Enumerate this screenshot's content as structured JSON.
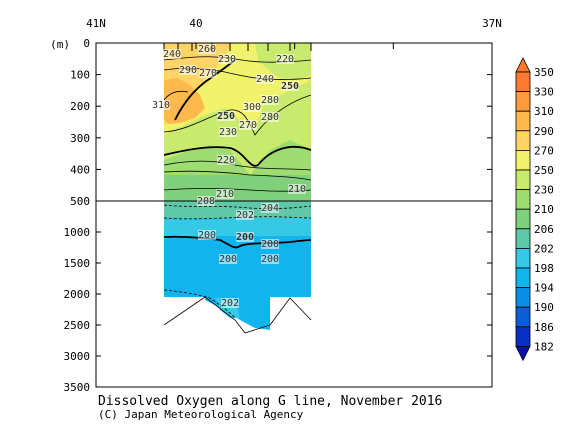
{
  "chart_data": {
    "type": "heatmap",
    "title": "Dissolved Oxygen along G line, November 2016",
    "credit": "(C) Japan Meteorological Agency",
    "ylabel": "(m)",
    "x_top_labels": [
      "41N",
      "40",
      "37N"
    ],
    "y_upper_ticks": [
      0,
      100,
      200,
      300,
      400,
      500
    ],
    "y_lower_ticks": [
      1000,
      1500,
      2000,
      2500,
      3000,
      3500
    ],
    "y_break_depth": 500,
    "ylim": [
      0,
      3500
    ],
    "colorbar": {
      "levels": [
        350,
        330,
        310,
        290,
        270,
        250,
        230,
        210,
        206,
        202,
        198,
        194,
        190,
        186,
        182
      ],
      "colors": [
        "#ff7a2e",
        "#ff9a3c",
        "#ffb84d",
        "#ffd466",
        "#f2f26a",
        "#c8eb6e",
        "#9edb70",
        "#7ed07a",
        "#5ec8a8",
        "#35c9e6",
        "#12b4ee",
        "#0a8ee6",
        "#0a5fd8",
        "#0a2fc4",
        "#0a10a8"
      ]
    },
    "contour_labels_upper": [
      "240",
      "260",
      "230",
      "250",
      "220",
      "240",
      "270",
      "280",
      "300",
      "310",
      "290",
      "280",
      "270",
      "250",
      "230",
      "220",
      "210",
      "210"
    ],
    "contour_labels_lower": [
      "208",
      "204",
      "202",
      "200",
      "200",
      "200",
      "200",
      "200",
      "202"
    ]
  }
}
